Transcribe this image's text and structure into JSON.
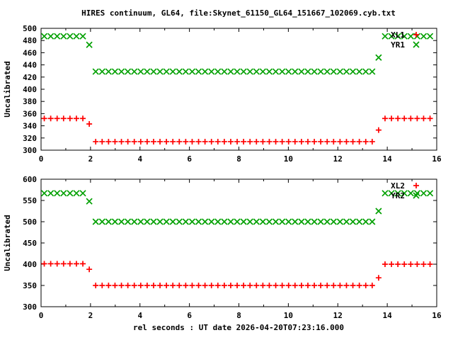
{
  "title": "HIRES continuum, GL64, file:Skynet_61150_GL64_151667_102069.cyb.txt",
  "xlabel": "rel seconds : UT date 2026-04-20T07:23:16.000",
  "colors": {
    "red": "#ff0000",
    "green": "#00a000",
    "axis": "#000000",
    "background": "#ffffff"
  },
  "chart_data": [
    {
      "type": "scatter",
      "ylabel": "Uncalibrated",
      "xlim": [
        0,
        16
      ],
      "ylim": [
        300,
        500
      ],
      "xticks": [
        0,
        2,
        4,
        6,
        8,
        10,
        12,
        14,
        16
      ],
      "xminorticks": [
        1,
        3,
        5,
        7,
        9,
        11,
        13,
        15
      ],
      "yticks": [
        300,
        320,
        340,
        360,
        380,
        400,
        420,
        440,
        460,
        480,
        500
      ],
      "grid": false,
      "legend_position": "top-right",
      "x": [
        0.13,
        0.39,
        0.65,
        0.91,
        1.17,
        1.43,
        1.69,
        1.95,
        2.21,
        2.47,
        2.73,
        2.99,
        3.25,
        3.51,
        3.77,
        4.03,
        4.29,
        4.55,
        4.81,
        5.07,
        5.33,
        5.59,
        5.85,
        6.11,
        6.37,
        6.63,
        6.89,
        7.15,
        7.41,
        7.67,
        7.93,
        8.19,
        8.45,
        8.71,
        8.97,
        9.23,
        9.49,
        9.75,
        10.01,
        10.27,
        10.53,
        10.79,
        11.05,
        11.31,
        11.57,
        11.83,
        12.09,
        12.35,
        12.61,
        12.87,
        13.13,
        13.39,
        13.65,
        13.91,
        14.17,
        14.43,
        14.69,
        14.95,
        15.21,
        15.47,
        15.73
      ],
      "series": [
        {
          "name": "XL1",
          "marker": "plus",
          "color": "#ff0000",
          "y": [
            352,
            352,
            352,
            352,
            352,
            352,
            352,
            343,
            314,
            314,
            314,
            314,
            314,
            314,
            314,
            314,
            314,
            314,
            314,
            314,
            314,
            314,
            314,
            314,
            314,
            314,
            314,
            314,
            314,
            314,
            314,
            314,
            314,
            314,
            314,
            314,
            314,
            314,
            314,
            314,
            314,
            314,
            314,
            314,
            314,
            314,
            314,
            314,
            314,
            314,
            314,
            314,
            333,
            352,
            352,
            352,
            352,
            352,
            352,
            352,
            352
          ]
        },
        {
          "name": "YR1",
          "marker": "cross",
          "color": "#00a000",
          "y": [
            487,
            487,
            487,
            487,
            487,
            487,
            487,
            473,
            429,
            429,
            429,
            429,
            429,
            429,
            429,
            429,
            429,
            429,
            429,
            429,
            429,
            429,
            429,
            429,
            429,
            429,
            429,
            429,
            429,
            429,
            429,
            429,
            429,
            429,
            429,
            429,
            429,
            429,
            429,
            429,
            429,
            429,
            429,
            429,
            429,
            429,
            429,
            429,
            429,
            429,
            429,
            429,
            452,
            487,
            487,
            487,
            487,
            487,
            487,
            487,
            487
          ]
        }
      ]
    },
    {
      "type": "scatter",
      "ylabel": "Uncalibrated",
      "xlim": [
        0,
        16
      ],
      "ylim": [
        300,
        600
      ],
      "xticks": [
        0,
        2,
        4,
        6,
        8,
        10,
        12,
        14,
        16
      ],
      "xminorticks": [
        1,
        3,
        5,
        7,
        9,
        11,
        13,
        15
      ],
      "yticks": [
        300,
        350,
        400,
        450,
        500,
        550,
        600
      ],
      "grid": false,
      "legend_position": "top-right",
      "x": [
        0.13,
        0.39,
        0.65,
        0.91,
        1.17,
        1.43,
        1.69,
        1.95,
        2.21,
        2.47,
        2.73,
        2.99,
        3.25,
        3.51,
        3.77,
        4.03,
        4.29,
        4.55,
        4.81,
        5.07,
        5.33,
        5.59,
        5.85,
        6.11,
        6.37,
        6.63,
        6.89,
        7.15,
        7.41,
        7.67,
        7.93,
        8.19,
        8.45,
        8.71,
        8.97,
        9.23,
        9.49,
        9.75,
        10.01,
        10.27,
        10.53,
        10.79,
        11.05,
        11.31,
        11.57,
        11.83,
        12.09,
        12.35,
        12.61,
        12.87,
        13.13,
        13.39,
        13.65,
        13.91,
        14.17,
        14.43,
        14.69,
        14.95,
        15.21,
        15.47,
        15.73
      ],
      "series": [
        {
          "name": "XL2",
          "marker": "plus",
          "color": "#ff0000",
          "y": [
            401,
            401,
            401,
            401,
            401,
            401,
            401,
            388,
            350,
            350,
            350,
            350,
            350,
            350,
            350,
            350,
            350,
            350,
            350,
            350,
            350,
            350,
            350,
            350,
            350,
            350,
            350,
            350,
            350,
            350,
            350,
            350,
            350,
            350,
            350,
            350,
            350,
            350,
            350,
            350,
            350,
            350,
            350,
            350,
            350,
            350,
            350,
            350,
            350,
            350,
            350,
            350,
            368,
            400,
            400,
            400,
            400,
            400,
            400,
            400,
            400
          ]
        },
        {
          "name": "YR2",
          "marker": "cross",
          "color": "#00a000",
          "y": [
            567,
            567,
            567,
            567,
            567,
            567,
            567,
            548,
            500,
            500,
            500,
            500,
            500,
            500,
            500,
            500,
            500,
            500,
            500,
            500,
            500,
            500,
            500,
            500,
            500,
            500,
            500,
            500,
            500,
            500,
            500,
            500,
            500,
            500,
            500,
            500,
            500,
            500,
            500,
            500,
            500,
            500,
            500,
            500,
            500,
            500,
            500,
            500,
            500,
            500,
            500,
            500,
            525,
            567,
            567,
            567,
            567,
            567,
            567,
            567,
            567
          ]
        }
      ]
    }
  ]
}
